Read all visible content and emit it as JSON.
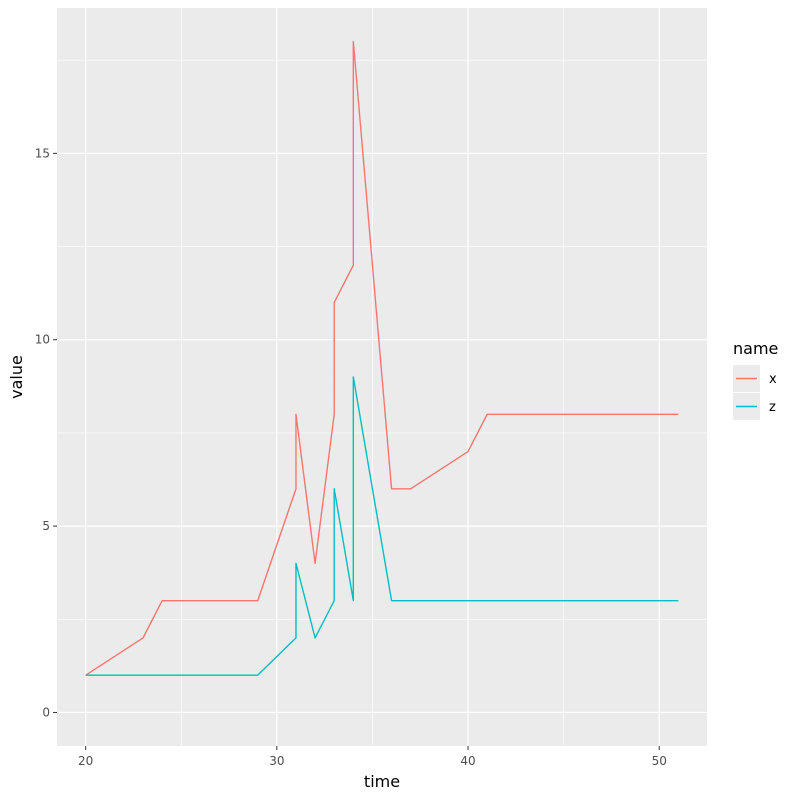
{
  "chart_data": {
    "type": "line",
    "title": "",
    "xlabel": "time",
    "ylabel": "value",
    "xlim": [
      18.5,
      52.5
    ],
    "ylim": [
      -0.9,
      18.9
    ],
    "x_ticks": [
      20,
      30,
      40,
      50
    ],
    "y_ticks": [
      0,
      5,
      10,
      15
    ],
    "x_tick_labels": [
      "20",
      "30",
      "40",
      "50"
    ],
    "y_tick_labels": [
      "0",
      "5",
      "10",
      "15"
    ],
    "grid": true,
    "legend_position": "right",
    "legend_title": "name",
    "series": [
      {
        "name": "x",
        "color": "#F8766D",
        "points": [
          [
            20,
            1
          ],
          [
            23,
            2
          ],
          [
            24,
            3
          ],
          [
            29,
            3
          ],
          [
            31,
            6
          ],
          [
            31,
            8
          ],
          [
            32,
            4
          ],
          [
            33,
            8
          ],
          [
            33,
            11
          ],
          [
            34,
            12
          ],
          [
            34,
            18
          ],
          [
            36,
            6
          ],
          [
            37,
            6
          ],
          [
            40,
            7
          ],
          [
            41,
            8
          ],
          [
            51,
            8
          ]
        ]
      },
      {
        "name": "z",
        "color": "#00BFC4",
        "points": [
          [
            20,
            1
          ],
          [
            29,
            1
          ],
          [
            31,
            2
          ],
          [
            31,
            4
          ],
          [
            32,
            2
          ],
          [
            33,
            3
          ],
          [
            33,
            6
          ],
          [
            34,
            3
          ],
          [
            34,
            9
          ],
          [
            36,
            3
          ],
          [
            51,
            3
          ]
        ]
      }
    ]
  }
}
